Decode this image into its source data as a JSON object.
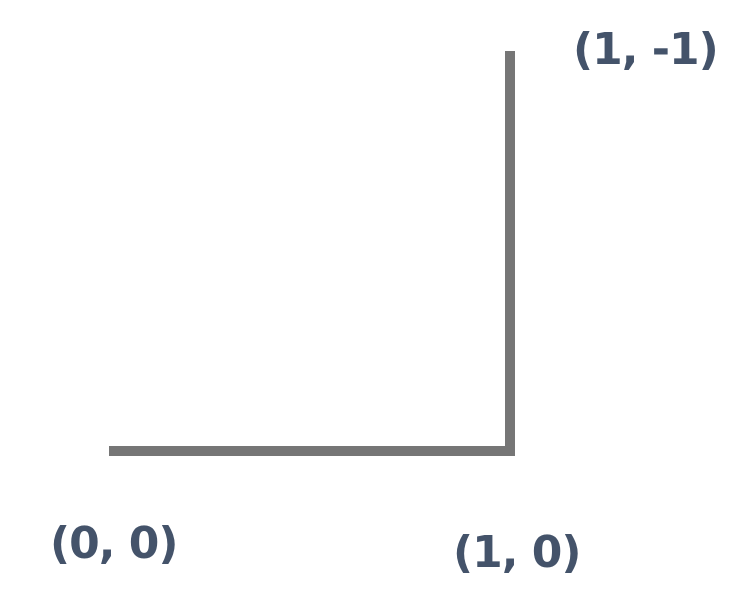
{
  "diagram": {
    "points": [
      {
        "id": "origin",
        "label": "(0, 0)"
      },
      {
        "id": "corner",
        "label": "(1, 0)"
      },
      {
        "id": "top",
        "label": "(1, -1)"
      }
    ],
    "colors": {
      "path": "#767676",
      "label": "#44536a"
    }
  }
}
